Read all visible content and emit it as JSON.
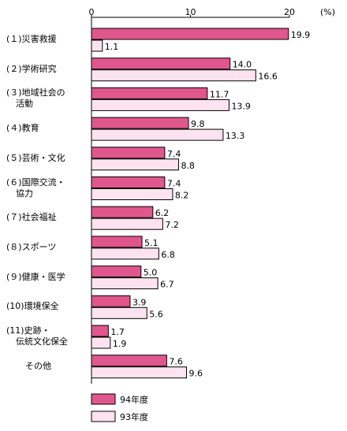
{
  "chart_data": {
    "type": "bar",
    "orientation": "horizontal",
    "unit": "(%)",
    "xlim": [
      0,
      20
    ],
    "x_ticks": [
      "0",
      "10",
      "20"
    ],
    "categories": [
      "(１)災害救援",
      "(２)学術研究",
      "(３)地域社会の活動",
      "(４)教育",
      "(５)芸術・文化",
      "(６)国際交流・協力",
      "(７)社会福祉",
      "(８)スポーツ",
      "(９)健康・医学",
      "(10)環境保全",
      "(11)史跡・伝統文化保全",
      "その他"
    ],
    "category_lines": [
      [
        "(１)災害救援"
      ],
      [
        "(２)学術研究"
      ],
      [
        "(３)地域社会の",
        "活動"
      ],
      [
        "(４)教育"
      ],
      [
        "(５)芸術・文化"
      ],
      [
        "(６)国際交流・",
        "協力"
      ],
      [
        "(７)社会福祉"
      ],
      [
        "(８)スポーツ"
      ],
      [
        "(９)健康・医学"
      ],
      [
        "(10)環境保全"
      ],
      [
        "(11)史跡・",
        "伝統文化保全"
      ],
      [
        "その他"
      ]
    ],
    "series": [
      {
        "name": "94年度",
        "color": "#e0578d",
        "values": [
          19.9,
          14.0,
          11.7,
          9.8,
          7.4,
          7.4,
          6.2,
          5.1,
          5.0,
          3.9,
          1.7,
          7.6
        ],
        "labels": [
          "19.9",
          "14.0",
          "11.7",
          "9.8",
          "7.4",
          "7.4",
          "6.2",
          "5.1",
          "5.0",
          "3.9",
          "1.7",
          "7.6"
        ]
      },
      {
        "name": "93年度",
        "color": "#fde3ef",
        "values": [
          1.1,
          16.6,
          13.9,
          13.3,
          8.8,
          8.2,
          7.2,
          6.8,
          6.7,
          5.6,
          1.9,
          9.6
        ],
        "labels": [
          "1.1",
          "16.6",
          "13.9",
          "13.3",
          "8.8",
          "8.2",
          "7.2",
          "6.8",
          "6.7",
          "5.6",
          "1.9",
          "9.6"
        ]
      }
    ],
    "legend_position": "bottom-left",
    "grid": false
  }
}
